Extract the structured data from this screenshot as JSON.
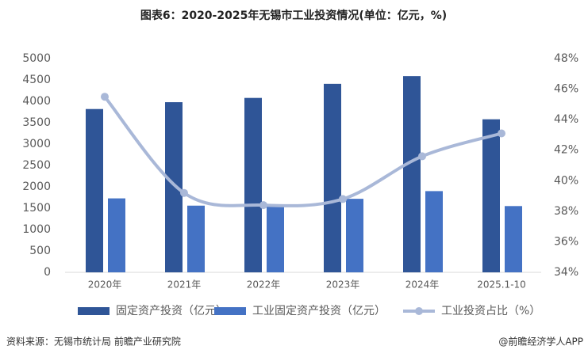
{
  "chart_data": {
    "type": "bar",
    "title": "图表6：2020-2025年无锡市工业投资情况(单位：亿元，%)",
    "categories": [
      "2020年",
      "2021年",
      "2022年",
      "2023年",
      "2024年",
      "2025.1-10"
    ],
    "series": [
      {
        "name": "固定资产投资（亿元）",
        "color": "#2f5597",
        "values": [
          3820,
          3980,
          4080,
          4410,
          4590,
          3580
        ]
      },
      {
        "name": "工业固定资产投资（亿元）",
        "color": "#4472c4",
        "values": [
          1730,
          1560,
          1550,
          1720,
          1900,
          1550
        ]
      },
      {
        "name": "工业投资占比（%）",
        "color": "#a9b8d8",
        "type": "line",
        "axis": "y2",
        "values": [
          45.5,
          39.2,
          38.4,
          38.8,
          41.6,
          43.1
        ]
      }
    ],
    "ylim": [
      0,
      5000
    ],
    "yticks": [
      0,
      500,
      1000,
      1500,
      2000,
      2500,
      3000,
      3500,
      4000,
      4500,
      5000
    ],
    "y2lim": [
      34,
      48
    ],
    "y2ticks": [
      {
        "value": 34,
        "label": "34%"
      },
      {
        "value": 36,
        "label": "36%"
      },
      {
        "value": 38,
        "label": "38%"
      },
      {
        "value": 40,
        "label": "40%"
      },
      {
        "value": 42,
        "label": "42%"
      },
      {
        "value": 44,
        "label": "44%"
      },
      {
        "value": 46,
        "label": "46%"
      },
      {
        "value": 48,
        "label": "48%"
      }
    ],
    "grid": false,
    "legend": "bottom",
    "source": "资料来源：无锡市统计局 前瞻产业研究院",
    "credit": "@前瞻经济学人APP"
  }
}
